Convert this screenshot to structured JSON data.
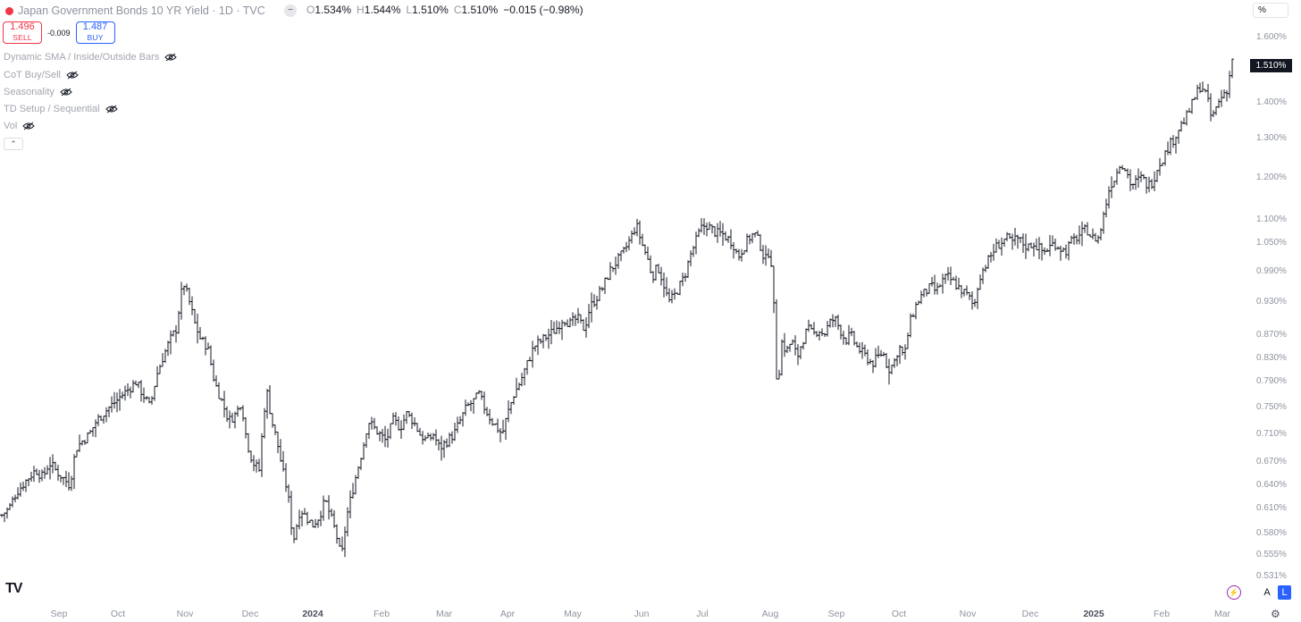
{
  "header": {
    "title": "Japan Government Bonds 10 YR Yield · 1D · TVC",
    "collapse_icon": "minus-icon",
    "ohlc": {
      "o_label": "O",
      "o": "1.534%",
      "h_label": "H",
      "h": "1.544%",
      "l_label": "L",
      "l": "1.510%",
      "c_label": "C",
      "c": "1.510%",
      "change": "−0.015 (−0.98%)"
    }
  },
  "trade": {
    "sell_price": "1.496",
    "sell_label": "SELL",
    "spread": "-0.009",
    "buy_price": "1.487",
    "buy_label": "BUY"
  },
  "indicators": [
    "Dynamic SMA / Inside/Outside Bars",
    "CoT Buy/Sell",
    "Seasonality",
    "TD Setup / Sequential",
    "Vol"
  ],
  "unit_button": "%",
  "price_axis": {
    "labels": [
      "1.600%",
      "1.400%",
      "1.300%",
      "1.200%",
      "1.100%",
      "1.050%",
      "0.990%",
      "0.930%",
      "0.870%",
      "0.830%",
      "0.790%",
      "0.750%",
      "0.710%",
      "0.670%",
      "0.640%",
      "0.610%",
      "0.580%",
      "0.555%",
      "0.531%"
    ],
    "last_price": "1.510%"
  },
  "time_axis": {
    "labels": [
      "Sep",
      "Oct",
      "Nov",
      "Dec",
      "2024",
      "Feb",
      "Mar",
      "Apr",
      "May",
      "Jun",
      "Jul",
      "Aug",
      "Sep",
      "Oct",
      "Nov",
      "Dec",
      "2025",
      "Feb",
      "Mar"
    ],
    "strong": [
      "2024",
      "2025"
    ]
  },
  "bottom_controls": {
    "auto": "A",
    "log": "L",
    "logo": "TV"
  },
  "colors": {
    "bar": "#131722",
    "sell": "#f23645",
    "buy": "#2962ff",
    "axis_text": "#8e939f"
  },
  "chart_data": {
    "type": "ohlc",
    "title": "Japan Government Bonds 10 YR Yield",
    "ylabel": "%",
    "scale": "log",
    "ylim": [
      0.525,
      1.62
    ],
    "x": [
      "2023-09",
      "2023-10",
      "2023-11",
      "2023-12",
      "2024-01",
      "2024-02",
      "2024-03",
      "2024-04",
      "2024-05",
      "2024-06",
      "2024-07",
      "2024-08",
      "2024-09",
      "2024-10",
      "2024-11",
      "2024-12",
      "2025-01",
      "2025-02",
      "2025-03"
    ],
    "series": [
      {
        "name": "Japan Government Bonds 10 YR Yield",
        "values": [
          0.65,
          0.77,
          0.86,
          0.7,
          0.62,
          0.72,
          0.73,
          0.86,
          1.0,
          1.06,
          1.06,
          0.9,
          0.82,
          0.87,
          1.05,
          1.07,
          1.22,
          1.4,
          1.51
        ]
      }
    ],
    "close_path": [
      [
        0,
        0.6
      ],
      [
        10,
        0.61
      ],
      [
        18,
        0.63
      ],
      [
        25,
        0.64
      ],
      [
        32,
        0.65
      ],
      [
        40,
        0.66
      ],
      [
        48,
        0.65
      ],
      [
        55,
        0.67
      ],
      [
        62,
        0.66
      ],
      [
        70,
        0.65
      ],
      [
        78,
        0.64
      ],
      [
        85,
        0.69
      ],
      [
        92,
        0.7
      ],
      [
        100,
        0.71
      ],
      [
        108,
        0.73
      ],
      [
        115,
        0.74
      ],
      [
        122,
        0.75
      ],
      [
        130,
        0.76
      ],
      [
        137,
        0.77
      ],
      [
        145,
        0.78
      ],
      [
        152,
        0.79
      ],
      [
        160,
        0.77
      ],
      [
        168,
        0.75
      ],
      [
        175,
        0.8
      ],
      [
        182,
        0.83
      ],
      [
        190,
        0.86
      ],
      [
        197,
        0.88
      ],
      [
        205,
        0.97
      ],
      [
        212,
        0.93
      ],
      [
        218,
        0.89
      ],
      [
        225,
        0.86
      ],
      [
        232,
        0.85
      ],
      [
        240,
        0.79
      ],
      [
        248,
        0.76
      ],
      [
        256,
        0.73
      ],
      [
        264,
        0.74
      ],
      [
        270,
        0.76
      ],
      [
        276,
        0.7
      ],
      [
        283,
        0.67
      ],
      [
        290,
        0.66
      ],
      [
        298,
        0.78
      ],
      [
        304,
        0.73
      ],
      [
        310,
        0.7
      ],
      [
        316,
        0.66
      ],
      [
        322,
        0.63
      ],
      [
        328,
        0.57
      ],
      [
        336,
        0.61
      ],
      [
        342,
        0.6
      ],
      [
        350,
        0.59
      ],
      [
        357,
        0.6
      ],
      [
        364,
        0.62
      ],
      [
        370,
        0.6
      ],
      [
        376,
        0.58
      ],
      [
        382,
        0.55
      ],
      [
        388,
        0.6
      ],
      [
        394,
        0.63
      ],
      [
        400,
        0.66
      ],
      [
        406,
        0.69
      ],
      [
        412,
        0.73
      ],
      [
        418,
        0.72
      ],
      [
        425,
        0.71
      ],
      [
        432,
        0.7
      ],
      [
        440,
        0.73
      ],
      [
        448,
        0.72
      ],
      [
        455,
        0.74
      ],
      [
        462,
        0.73
      ],
      [
        470,
        0.71
      ],
      [
        478,
        0.7
      ],
      [
        485,
        0.71
      ],
      [
        492,
        0.69
      ],
      [
        500,
        0.7
      ],
      [
        508,
        0.71
      ],
      [
        515,
        0.73
      ],
      [
        522,
        0.75
      ],
      [
        530,
        0.76
      ],
      [
        536,
        0.77
      ],
      [
        542,
        0.75
      ],
      [
        550,
        0.73
      ],
      [
        556,
        0.72
      ],
      [
        562,
        0.71
      ],
      [
        568,
        0.74
      ],
      [
        575,
        0.77
      ],
      [
        582,
        0.79
      ],
      [
        590,
        0.82
      ],
      [
        598,
        0.85
      ],
      [
        606,
        0.86
      ],
      [
        614,
        0.87
      ],
      [
        622,
        0.88
      ],
      [
        630,
        0.9
      ],
      [
        638,
        0.89
      ],
      [
        646,
        0.9
      ],
      [
        654,
        0.88
      ],
      [
        660,
        0.92
      ],
      [
        668,
        0.94
      ],
      [
        675,
        0.96
      ],
      [
        682,
        0.99
      ],
      [
        690,
        1.01
      ],
      [
        698,
        1.03
      ],
      [
        706,
        1.06
      ],
      [
        712,
        1.09
      ],
      [
        718,
        1.05
      ],
      [
        724,
        1.02
      ],
      [
        730,
        0.98
      ],
      [
        736,
        1.0
      ],
      [
        742,
        0.97
      ],
      [
        748,
        0.93
      ],
      [
        754,
        0.94
      ],
      [
        760,
        0.96
      ],
      [
        766,
        0.98
      ],
      [
        772,
        1.02
      ],
      [
        778,
        1.05
      ],
      [
        784,
        1.08
      ],
      [
        790,
        1.09
      ],
      [
        796,
        1.08
      ],
      [
        802,
        1.07
      ],
      [
        808,
        1.07
      ],
      [
        814,
        1.06
      ],
      [
        820,
        1.05
      ],
      [
        826,
        1.02
      ],
      [
        832,
        1.04
      ],
      [
        838,
        1.06
      ],
      [
        844,
        1.07
      ],
      [
        850,
        1.05
      ],
      [
        856,
        1.01
      ],
      [
        862,
        1.04
      ],
      [
        866,
        0.92
      ],
      [
        870,
        0.76
      ],
      [
        874,
        0.86
      ],
      [
        880,
        0.84
      ],
      [
        886,
        0.86
      ],
      [
        892,
        0.83
      ],
      [
        898,
        0.86
      ],
      [
        904,
        0.88
      ],
      [
        910,
        0.87
      ],
      [
        916,
        0.88
      ],
      [
        922,
        0.87
      ],
      [
        928,
        0.89
      ],
      [
        934,
        0.9
      ],
      [
        940,
        0.88
      ],
      [
        946,
        0.86
      ],
      [
        952,
        0.87
      ],
      [
        958,
        0.85
      ],
      [
        964,
        0.84
      ],
      [
        970,
        0.83
      ],
      [
        976,
        0.82
      ],
      [
        982,
        0.83
      ],
      [
        988,
        0.84
      ],
      [
        994,
        0.81
      ],
      [
        1000,
        0.82
      ],
      [
        1006,
        0.85
      ],
      [
        1012,
        0.83
      ],
      [
        1018,
        0.89
      ],
      [
        1024,
        0.92
      ],
      [
        1030,
        0.94
      ],
      [
        1036,
        0.95
      ],
      [
        1042,
        0.96
      ],
      [
        1048,
        0.95
      ],
      [
        1054,
        0.97
      ],
      [
        1060,
        0.98
      ],
      [
        1066,
        0.97
      ],
      [
        1072,
        0.96
      ],
      [
        1078,
        0.95
      ],
      [
        1084,
        0.94
      ],
      [
        1090,
        0.92
      ],
      [
        1096,
        0.98
      ],
      [
        1102,
        1.0
      ],
      [
        1108,
        1.02
      ],
      [
        1114,
        1.04
      ],
      [
        1120,
        1.05
      ],
      [
        1126,
        1.06
      ],
      [
        1132,
        1.05
      ],
      [
        1138,
        1.06
      ],
      [
        1144,
        1.05
      ],
      [
        1150,
        1.04
      ],
      [
        1156,
        1.05
      ],
      [
        1162,
        1.04
      ],
      [
        1168,
        1.03
      ],
      [
        1174,
        1.04
      ],
      [
        1180,
        1.05
      ],
      [
        1186,
        1.04
      ],
      [
        1192,
        1.03
      ],
      [
        1198,
        1.05
      ],
      [
        1204,
        1.06
      ],
      [
        1210,
        1.07
      ],
      [
        1216,
        1.08
      ],
      [
        1222,
        1.06
      ],
      [
        1230,
        1.06
      ],
      [
        1236,
        1.12
      ],
      [
        1242,
        1.18
      ],
      [
        1248,
        1.2
      ],
      [
        1254,
        1.24
      ],
      [
        1260,
        1.22
      ],
      [
        1266,
        1.18
      ],
      [
        1272,
        1.19
      ],
      [
        1278,
        1.2
      ],
      [
        1284,
        1.18
      ],
      [
        1290,
        1.19
      ],
      [
        1296,
        1.23
      ],
      [
        1302,
        1.25
      ],
      [
        1308,
        1.28
      ],
      [
        1314,
        1.3
      ],
      [
        1320,
        1.33
      ],
      [
        1326,
        1.35
      ],
      [
        1332,
        1.38
      ],
      [
        1338,
        1.42
      ],
      [
        1344,
        1.45
      ],
      [
        1350,
        1.42
      ],
      [
        1356,
        1.35
      ],
      [
        1362,
        1.39
      ],
      [
        1368,
        1.42
      ],
      [
        1374,
        1.44
      ],
      [
        1380,
        1.55
      ]
    ]
  }
}
